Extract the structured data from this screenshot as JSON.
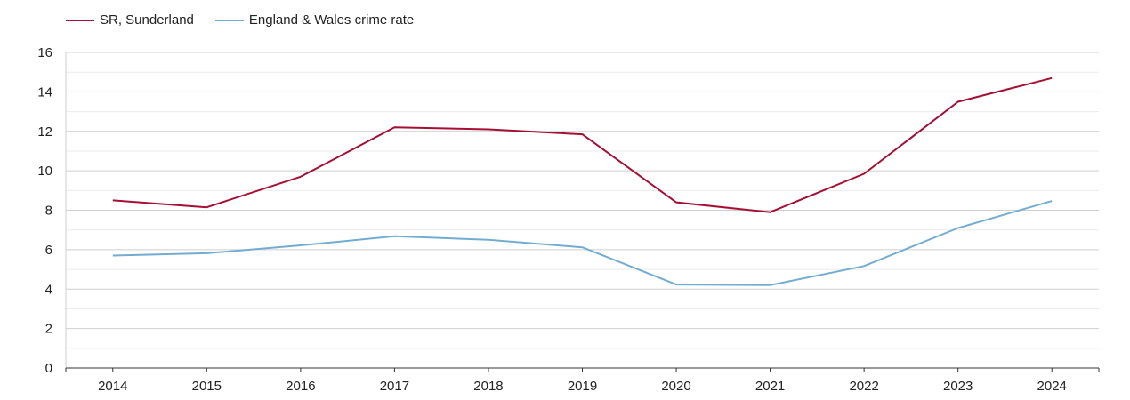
{
  "chart_data": {
    "type": "line",
    "categories": [
      "2014",
      "2015",
      "2016",
      "2017",
      "2018",
      "2019",
      "2020",
      "2021",
      "2022",
      "2023",
      "2024"
    ],
    "series": [
      {
        "name": "SR, Sunderland",
        "color": "#a50f34",
        "values": [
          8.5,
          8.15,
          9.7,
          12.2,
          12.1,
          11.85,
          8.4,
          7.9,
          9.85,
          13.5,
          14.7
        ]
      },
      {
        "name": "England & Wales crime rate",
        "color": "#74acd0",
        "values": [
          5.7,
          5.82,
          6.22,
          6.68,
          6.5,
          6.12,
          4.23,
          4.2,
          5.17,
          7.1,
          8.47
        ]
      }
    ],
    "title": "",
    "xlabel": "",
    "ylabel": "",
    "ylim": [
      0,
      16
    ],
    "yticks": [
      0,
      2,
      4,
      6,
      8,
      10,
      12,
      14,
      16
    ],
    "grid": true,
    "legend_position": "top-left"
  }
}
